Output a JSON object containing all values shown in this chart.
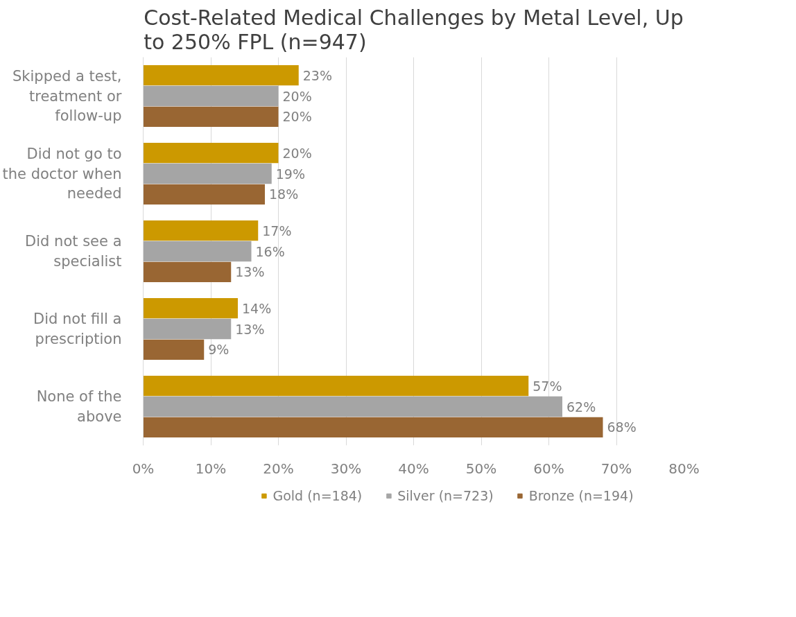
{
  "chart_data": {
    "type": "bar",
    "orientation": "horizontal",
    "title": "Cost-Related Medical Challenges by Metal Level, Up to 250% FPL (n=947)",
    "categories": [
      "Skipped a test, treatment or follow-up",
      "Did not go to the doctor when needed",
      "Did not see a specialist",
      "Did not fill a prescription",
      "None of the above"
    ],
    "series": [
      {
        "name": "Gold (n=184)",
        "color": "#cc9900",
        "values": [
          23,
          20,
          17,
          14,
          57
        ],
        "value_labels": [
          "23%",
          "20%",
          "17%",
          "14%",
          "57%"
        ]
      },
      {
        "name": "Silver (n=723)",
        "color": "#a5a5a5",
        "values": [
          20,
          19,
          16,
          13,
          62
        ],
        "value_labels": [
          "20%",
          "19%",
          "16%",
          "13%",
          "62%"
        ]
      },
      {
        "name": "Bronze (n=194)",
        "color": "#996633",
        "values": [
          20,
          18,
          13,
          9,
          68
        ],
        "value_labels": [
          "20%",
          "18%",
          "13%",
          "9%",
          "68%"
        ]
      }
    ],
    "xlim": [
      0,
      80
    ],
    "xticks": [
      {
        "value": 0,
        "label": "0%"
      },
      {
        "value": 10,
        "label": "10%"
      },
      {
        "value": 20,
        "label": "20%"
      },
      {
        "value": 30,
        "label": "30%"
      },
      {
        "value": 40,
        "label": "40%"
      },
      {
        "value": 50,
        "label": "50%"
      },
      {
        "value": 60,
        "label": "60%"
      },
      {
        "value": 70,
        "label": "70%"
      },
      {
        "value": 80,
        "label": "80%"
      }
    ],
    "grid": "x",
    "legend": "bottom"
  }
}
